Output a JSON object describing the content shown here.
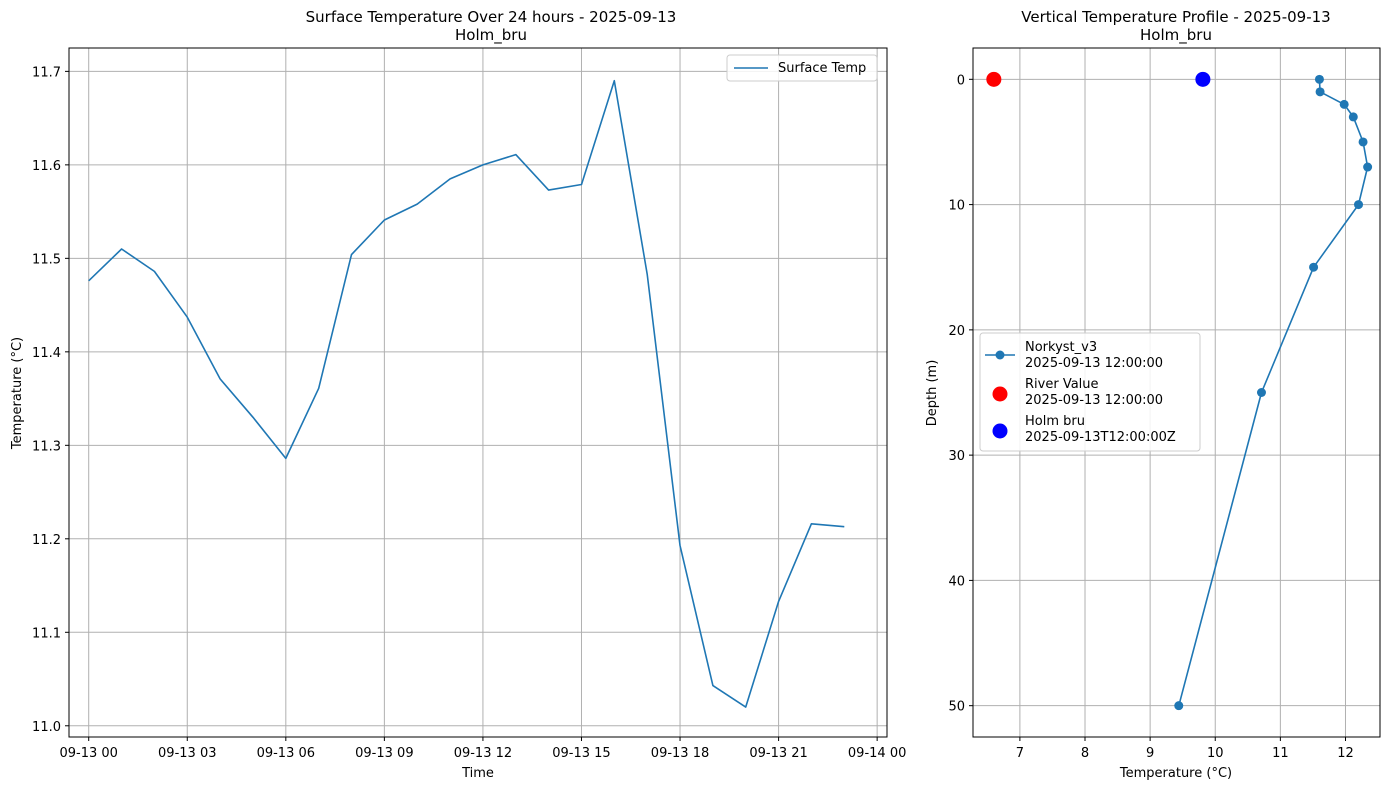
{
  "chart_data": [
    {
      "type": "line",
      "title": "Surface Temperature Over 24 hours - 2025-09-13",
      "subtitle": "Holm_bru",
      "xlabel": "Time",
      "ylabel": "Temperature (°C)",
      "grid": true,
      "legend_position": "top-right",
      "xlim": [
        -0.6,
        24.3
      ],
      "ylim": [
        10.988,
        11.725
      ],
      "x_ticks": [
        0,
        3,
        6,
        9,
        12,
        15,
        18,
        21,
        24
      ],
      "x_tick_labels": [
        "09-13 00",
        "09-13 03",
        "09-13 06",
        "09-13 09",
        "09-13 12",
        "09-13 15",
        "09-13 18",
        "09-13 21",
        "09-14 00"
      ],
      "y_ticks": [
        11.0,
        11.1,
        11.2,
        11.3,
        11.4,
        11.5,
        11.6,
        11.7
      ],
      "y_tick_labels": [
        "11.0",
        "11.1",
        "11.2",
        "11.3",
        "11.4",
        "11.5",
        "11.6",
        "11.7"
      ],
      "series": [
        {
          "name": "Surface Temp",
          "color": "#1f77b4",
          "x": [
            0,
            1,
            2,
            3,
            4,
            5,
            6,
            7,
            8,
            9,
            10,
            11,
            12,
            13,
            14,
            15,
            16,
            17,
            18,
            19,
            20,
            21,
            22,
            23
          ],
          "y": [
            11.476,
            11.51,
            11.486,
            11.437,
            11.371,
            11.33,
            11.286,
            11.361,
            11.504,
            11.541,
            11.558,
            11.585,
            11.6,
            11.611,
            11.573,
            11.579,
            11.69,
            11.483,
            11.193,
            11.043,
            11.02,
            11.133,
            11.216,
            11.213
          ]
        }
      ]
    },
    {
      "type": "scatter",
      "title": "Vertical Temperature Profile - 2025-09-13",
      "subtitle": "Holm_bru",
      "xlabel": "Temperature (°C)",
      "ylabel": "Depth (m)",
      "grid": true,
      "y_inverted": true,
      "legend_position": "center-left",
      "xlim": [
        6.28,
        12.53
      ],
      "ylim": [
        -2.5,
        52.5
      ],
      "x_ticks": [
        7,
        8,
        9,
        10,
        11,
        12
      ],
      "x_tick_labels": [
        "7",
        "8",
        "9",
        "10",
        "11",
        "12"
      ],
      "y_ticks": [
        0,
        10,
        20,
        30,
        40,
        50
      ],
      "y_tick_labels": [
        "0",
        "10",
        "20",
        "30",
        "40",
        "50"
      ],
      "series": [
        {
          "name": "Norkyst_v3",
          "name_line2": "2025-09-13 12:00:00",
          "color": "#1f77b4",
          "marker": "line-dot",
          "x": [
            11.6,
            11.61,
            11.98,
            12.12,
            12.27,
            12.34,
            12.2,
            11.51,
            10.71,
            9.44
          ],
          "y": [
            0,
            1,
            2,
            3,
            5,
            7,
            10,
            15,
            25,
            50
          ]
        },
        {
          "name": "River Value",
          "name_line2": "2025-09-13 12:00:00",
          "color": "#ff0000",
          "marker": "big-dot",
          "x": [
            6.6
          ],
          "y": [
            0
          ]
        },
        {
          "name": "Holm bru",
          "name_line2": "2025-09-13T12:00:00Z",
          "color": "#0000ff",
          "marker": "big-dot",
          "x": [
            9.81
          ],
          "y": [
            0
          ]
        }
      ]
    }
  ]
}
